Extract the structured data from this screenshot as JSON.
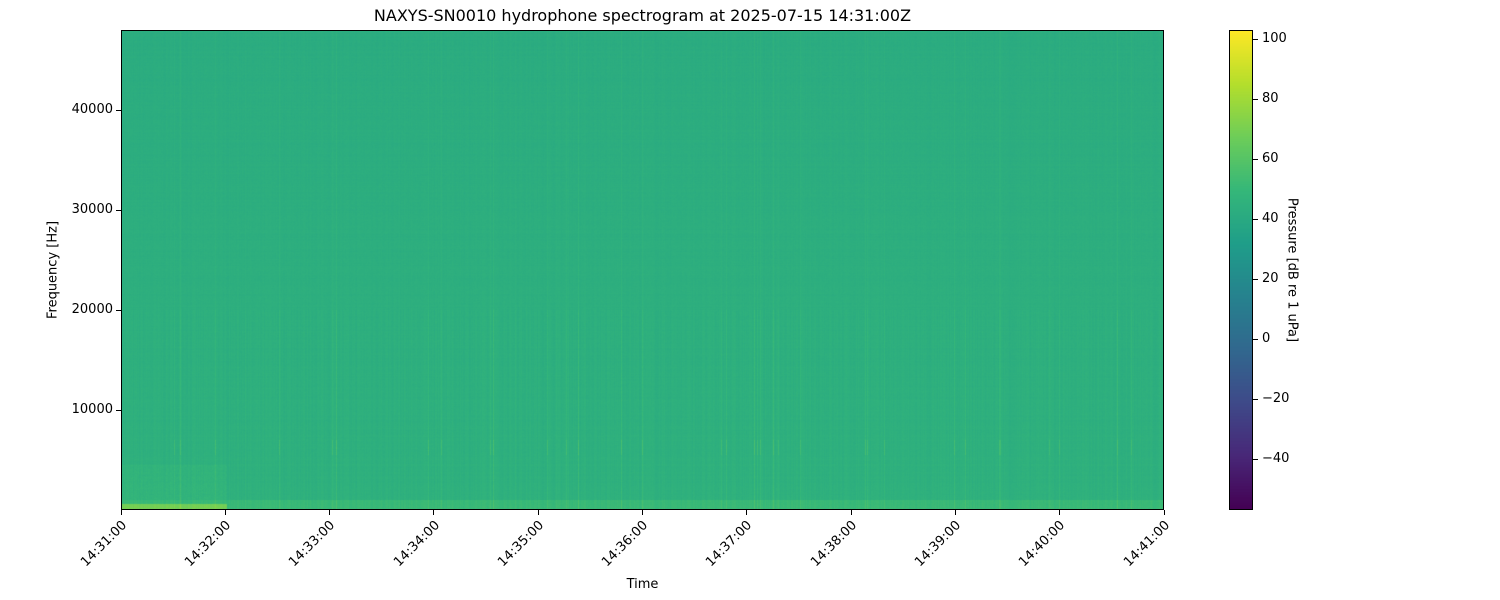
{
  "chart_data": {
    "type": "heatmap",
    "title": "NAXYS-SN0010 hydrophone spectrogram at 2025-07-15 14:31:00Z",
    "xlabel": "Time",
    "ylabel": "Frequency [Hz]",
    "x_range": [
      "14:31:00",
      "14:41:00"
    ],
    "x_ticks": [
      "14:31:00",
      "14:32:00",
      "14:33:00",
      "14:34:00",
      "14:35:00",
      "14:36:00",
      "14:37:00",
      "14:38:00",
      "14:39:00",
      "14:40:00",
      "14:41:00"
    ],
    "ylim": [
      0,
      48000
    ],
    "y_ticks": [
      10000,
      20000,
      30000,
      40000
    ],
    "colorbar": {
      "label": "Pressure [dB re 1 uPa]",
      "colormap": "viridis",
      "clim": [
        -57,
        103
      ],
      "ticks": [
        -40,
        -20,
        0,
        20,
        40,
        60,
        80,
        100
      ]
    },
    "approx_levels": {
      "background_db": 45,
      "low_frequency_band_db": 70,
      "low_frequency_band_hz": [
        0,
        1000
      ],
      "early_elevated_band_hz": [
        1000,
        4500
      ],
      "early_elevated_time": [
        "14:31:00",
        "14:32:00"
      ]
    },
    "grid": false
  }
}
